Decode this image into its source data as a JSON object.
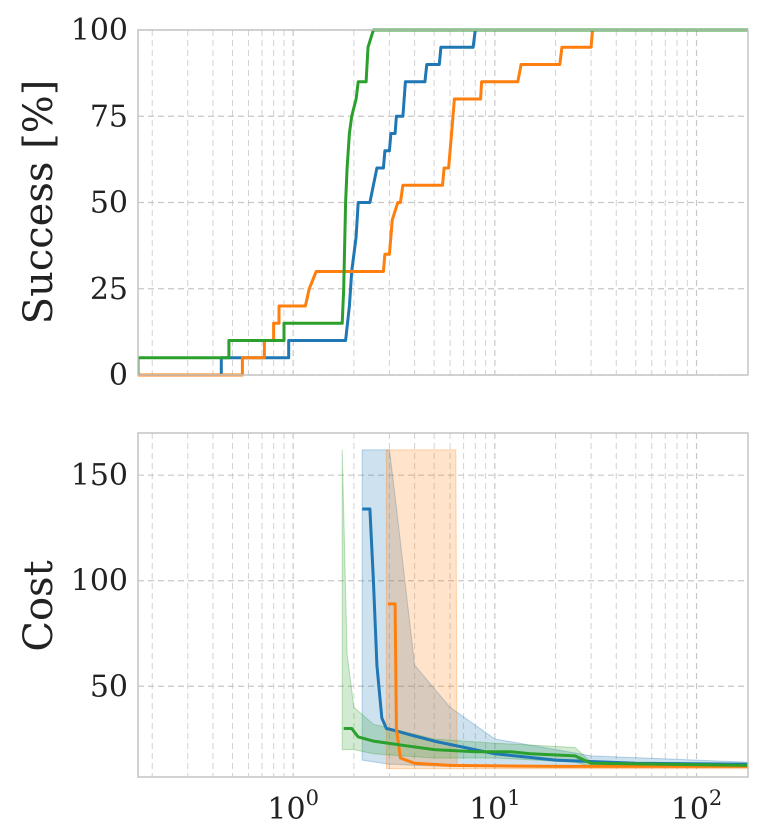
{
  "chart_data": [
    {
      "type": "line",
      "xscale": "log",
      "xlim": [
        0.17,
        180
      ],
      "ylim": [
        0,
        100
      ],
      "ylabel": "Success [%]",
      "yticks": [
        0,
        25,
        50,
        75,
        100
      ],
      "grid": true,
      "series": [
        {
          "color": "#1f77b4",
          "points": [
            [
              0.17,
              0
            ],
            [
              0.44,
              0
            ],
            [
              0.44,
              5
            ],
            [
              0.95,
              5
            ],
            [
              0.95,
              10
            ],
            [
              1.82,
              10
            ],
            [
              1.9,
              20
            ],
            [
              1.95,
              30
            ],
            [
              2.05,
              40
            ],
            [
              2.1,
              50
            ],
            [
              2.4,
              50
            ],
            [
              2.5,
              55
            ],
            [
              2.6,
              60
            ],
            [
              2.8,
              60
            ],
            [
              2.85,
              65
            ],
            [
              3.0,
              65
            ],
            [
              3.05,
              70
            ],
            [
              3.2,
              70
            ],
            [
              3.25,
              75
            ],
            [
              3.5,
              75
            ],
            [
              3.6,
              85
            ],
            [
              4.5,
              85
            ],
            [
              4.6,
              90
            ],
            [
              5.3,
              90
            ],
            [
              5.4,
              95
            ],
            [
              7.8,
              95
            ],
            [
              8.0,
              100
            ],
            [
              180,
              100
            ]
          ]
        },
        {
          "color": "#ff7f0e",
          "points": [
            [
              0.17,
              0
            ],
            [
              0.56,
              0
            ],
            [
              0.56,
              5
            ],
            [
              0.72,
              5
            ],
            [
              0.72,
              10
            ],
            [
              0.8,
              10
            ],
            [
              0.8,
              15
            ],
            [
              0.85,
              15
            ],
            [
              0.85,
              20
            ],
            [
              1.15,
              20
            ],
            [
              1.2,
              25
            ],
            [
              1.3,
              30
            ],
            [
              2.8,
              30
            ],
            [
              2.85,
              35
            ],
            [
              3.0,
              35
            ],
            [
              3.1,
              45
            ],
            [
              3.3,
              50
            ],
            [
              3.4,
              50
            ],
            [
              3.5,
              55
            ],
            [
              5.5,
              55
            ],
            [
              5.6,
              60
            ],
            [
              5.9,
              60
            ],
            [
              6.0,
              65
            ],
            [
              6.2,
              75
            ],
            [
              6.3,
              80
            ],
            [
              8.5,
              80
            ],
            [
              8.6,
              85
            ],
            [
              13,
              85
            ],
            [
              13.5,
              90
            ],
            [
              21,
              90
            ],
            [
              21.5,
              95
            ],
            [
              30,
              95
            ],
            [
              30.5,
              100
            ],
            [
              180,
              100
            ]
          ]
        },
        {
          "color": "#2ca02c",
          "points": [
            [
              0.17,
              0
            ],
            [
              0.17,
              5
            ],
            [
              0.48,
              5
            ],
            [
              0.48,
              10
            ],
            [
              0.9,
              10
            ],
            [
              0.9,
              15
            ],
            [
              1.75,
              15
            ],
            [
              1.78,
              25
            ],
            [
              1.82,
              50
            ],
            [
              1.85,
              60
            ],
            [
              1.9,
              70
            ],
            [
              1.95,
              75
            ],
            [
              2.05,
              80
            ],
            [
              2.1,
              85
            ],
            [
              2.3,
              85
            ],
            [
              2.35,
              95
            ],
            [
              2.5,
              100
            ],
            [
              180,
              100
            ]
          ]
        }
      ]
    },
    {
      "type": "line",
      "xscale": "log",
      "xlim": [
        0.17,
        180
      ],
      "ylim": [
        7,
        170
      ],
      "ylabel": "Cost",
      "yticks": [
        50,
        100,
        150
      ],
      "xticks": [
        {
          "value": 1,
          "base": "10",
          "exp": "0"
        },
        {
          "value": 10,
          "base": "10",
          "exp": "1"
        },
        {
          "value": 100,
          "base": "10",
          "exp": "2"
        }
      ],
      "grid": true,
      "series": [
        {
          "color": "#1f77b4",
          "points": [
            [
              2.2,
              134
            ],
            [
              2.4,
              134
            ],
            [
              2.5,
              100
            ],
            [
              2.6,
              60
            ],
            [
              2.75,
              35
            ],
            [
              2.9,
              30
            ],
            [
              3.2,
              29
            ],
            [
              3.8,
              27
            ],
            [
              5,
              24
            ],
            [
              10,
              18
            ],
            [
              20,
              15
            ],
            [
              50,
              13.5
            ],
            [
              180,
              13
            ]
          ],
          "band": [
            [
              2.2,
              15,
              162
            ],
            [
              3.0,
              13,
              162
            ],
            [
              3.2,
              13,
              140
            ],
            [
              4,
              12.5,
              60
            ],
            [
              6,
              12,
              40
            ],
            [
              10,
              12,
              25
            ],
            [
              30,
              12,
              17
            ],
            [
              180,
              12,
              14
            ]
          ]
        },
        {
          "color": "#ff7f0e",
          "points": [
            [
              2.95,
              89
            ],
            [
              3.2,
              89
            ],
            [
              3.25,
              30
            ],
            [
              3.4,
              16
            ],
            [
              4,
              13.5
            ],
            [
              6,
              12.5
            ],
            [
              20,
              12
            ],
            [
              180,
              12
            ]
          ],
          "band": [
            [
              2.9,
              11,
              162
            ],
            [
              6.4,
              11,
              162
            ],
            [
              6.5,
              11,
              12.5
            ],
            [
              180,
              11,
              12
            ]
          ]
        },
        {
          "color": "#2ca02c",
          "points": [
            [
              1.78,
              30
            ],
            [
              1.95,
              30
            ],
            [
              2.1,
              26
            ],
            [
              2.5,
              24
            ],
            [
              3.5,
              22
            ],
            [
              5,
              20
            ],
            [
              8,
              19
            ],
            [
              12,
              19
            ],
            [
              15,
              18
            ],
            [
              25,
              17
            ],
            [
              30,
              13.5
            ],
            [
              180,
              12.5
            ]
          ],
          "band": [
            [
              1.75,
              20,
              162
            ],
            [
              1.85,
              20,
              65
            ],
            [
              2.0,
              20,
              40
            ],
            [
              2.5,
              18,
              32
            ],
            [
              5,
              16,
              25
            ],
            [
              10,
              16,
              23
            ],
            [
              25,
              14,
              21
            ],
            [
              30,
              12,
              14
            ],
            [
              180,
              11.5,
              13
            ]
          ]
        }
      ]
    }
  ]
}
